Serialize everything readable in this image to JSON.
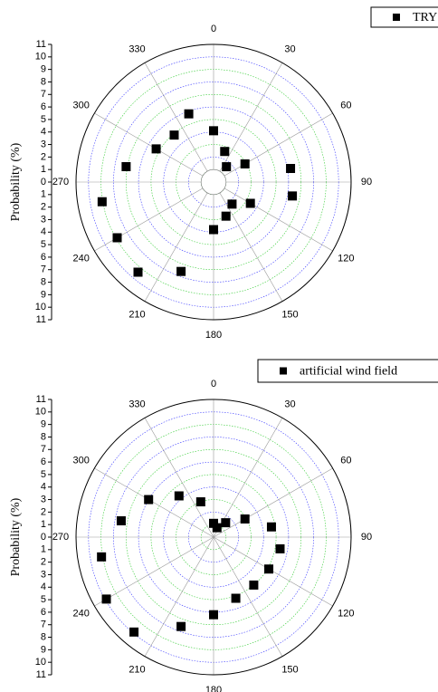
{
  "chart_data": [
    {
      "type": "scatter",
      "polar": true,
      "ylabel": "Probability (%)",
      "x": [
        0,
        20,
        40,
        60,
        80,
        100,
        120,
        140,
        160,
        180,
        200,
        220,
        240,
        260,
        280,
        300,
        320,
        340
      ],
      "series": [
        {
          "name": "TRY",
          "color": "#000000",
          "values": [
            4.1,
            2.6,
            1.6,
            2.9,
            6.25,
            6.4,
            3.4,
            2.3,
            2.9,
            3.8,
            7.6,
            9.4,
            8.9,
            9.05,
            7.1,
            5.3,
            4.9,
            5.8
          ]
        }
      ],
      "xticks": [
        0,
        30,
        60,
        90,
        120,
        150,
        180,
        210,
        240,
        270,
        300,
        330
      ],
      "ylim": [
        0,
        11
      ],
      "yticks": [
        0,
        1,
        2,
        3,
        4,
        5,
        6,
        7,
        8,
        9,
        10,
        11
      ],
      "grid": true
    },
    {
      "type": "scatter",
      "polar": true,
      "ylabel": "Probability (%)",
      "x": [
        0,
        20,
        40,
        60,
        80,
        100,
        120,
        140,
        160,
        180,
        200,
        220,
        240,
        260,
        280,
        300,
        320,
        340
      ],
      "series": [
        {
          "name": "artificial wind field",
          "color": "#000000",
          "values": [
            1.1,
            0.8,
            1.5,
            2.9,
            4.7,
            5.4,
            5.1,
            5.0,
            5.2,
            6.2,
            7.6,
            9.9,
            9.9,
            9.1,
            7.5,
            6.0,
            4.3,
            3.0
          ]
        }
      ],
      "xticks": [
        0,
        30,
        60,
        90,
        120,
        150,
        180,
        210,
        240,
        270,
        300,
        330
      ],
      "ylim": [
        0,
        11
      ],
      "yticks": [
        0,
        1,
        2,
        3,
        4,
        5,
        6,
        7,
        8,
        9,
        10,
        11
      ],
      "grid": true
    }
  ]
}
